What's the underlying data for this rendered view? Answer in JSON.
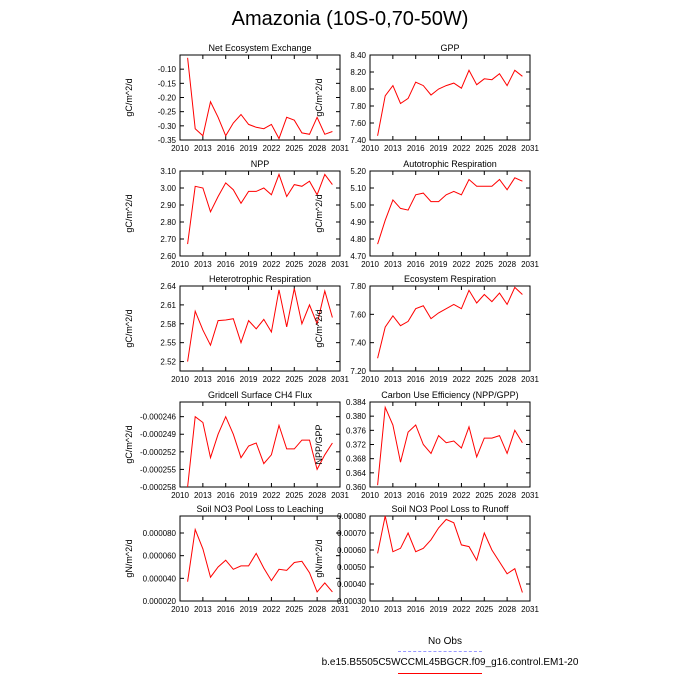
{
  "page": {
    "title": "Amazonia (10S-0,70-50W)"
  },
  "legend": {
    "entries": [
      {
        "label": "No Obs",
        "color": "#9999ff",
        "style": "dashed"
      },
      {
        "label": "b.e15.B5505C5WCCML45BGCR.f09_g16.control.EM1-20",
        "color": "#ff0000",
        "style": "solid"
      }
    ]
  },
  "colors": {
    "series": "#ff0000",
    "axis": "#000000"
  },
  "chart_data": [
    {
      "type": "line",
      "title": "Net Ecosystem Exchange",
      "ylabel": "gC/m^2/d",
      "xlim": [
        2010,
        2031
      ],
      "ylim": [
        -0.35,
        -0.05
      ],
      "xticks": [
        "2010",
        "2013",
        "2016",
        "2019",
        "2022",
        "2025",
        "2028",
        "2031"
      ],
      "yticks": [
        "-0.10",
        "-0.15",
        "-0.20",
        "-0.25",
        "-0.30",
        "-0.35"
      ],
      "ytick_values": [
        -0.1,
        -0.15,
        -0.2,
        -0.25,
        -0.3,
        -0.35
      ],
      "x": [
        2011,
        2012,
        2013,
        2014,
        2015,
        2016,
        2017,
        2018,
        2019,
        2020,
        2021,
        2022,
        2023,
        2024,
        2025,
        2026,
        2027,
        2028,
        2029,
        2030
      ],
      "series": [
        {
          "values": [
            -0.06,
            -0.31,
            -0.335,
            -0.215,
            -0.27,
            -0.335,
            -0.29,
            -0.26,
            -0.295,
            -0.305,
            -0.31,
            -0.295,
            -0.345,
            -0.27,
            -0.28,
            -0.325,
            -0.33,
            -0.27,
            -0.33,
            -0.32
          ]
        }
      ]
    },
    {
      "type": "line",
      "title": "GPP",
      "ylabel": "gC/m^2/d",
      "xlim": [
        2010,
        2031
      ],
      "ylim": [
        7.4,
        8.4
      ],
      "xticks": [
        "2010",
        "2013",
        "2016",
        "2019",
        "2022",
        "2025",
        "2028",
        "2031"
      ],
      "yticks": [
        "8.40",
        "8.20",
        "8.00",
        "7.80",
        "7.60",
        "7.40"
      ],
      "ytick_values": [
        8.4,
        8.2,
        8.0,
        7.8,
        7.6,
        7.4
      ],
      "x": [
        2011,
        2012,
        2013,
        2014,
        2015,
        2016,
        2017,
        2018,
        2019,
        2020,
        2021,
        2022,
        2023,
        2024,
        2025,
        2026,
        2027,
        2028,
        2029,
        2030
      ],
      "series": [
        {
          "values": [
            7.45,
            7.92,
            8.04,
            7.83,
            7.89,
            8.08,
            8.04,
            7.93,
            8.0,
            8.04,
            8.07,
            8.01,
            8.22,
            8.05,
            8.12,
            8.11,
            8.18,
            8.04,
            8.22,
            8.15
          ]
        }
      ]
    },
    {
      "type": "line",
      "title": "NPP",
      "ylabel": "gC/m^2/d",
      "xlim": [
        2010,
        2031
      ],
      "ylim": [
        2.6,
        3.1
      ],
      "xticks": [
        "2010",
        "2013",
        "2016",
        "2019",
        "2022",
        "2025",
        "2028",
        "2031"
      ],
      "yticks": [
        "3.10",
        "3.00",
        "2.90",
        "2.80",
        "2.70",
        "2.60"
      ],
      "ytick_values": [
        3.1,
        3.0,
        2.9,
        2.8,
        2.7,
        2.6
      ],
      "x": [
        2011,
        2012,
        2013,
        2014,
        2015,
        2016,
        2017,
        2018,
        2019,
        2020,
        2021,
        2022,
        2023,
        2024,
        2025,
        2026,
        2027,
        2028,
        2029,
        2030
      ],
      "series": [
        {
          "values": [
            2.67,
            3.01,
            3.0,
            2.86,
            2.95,
            3.03,
            2.99,
            2.91,
            2.98,
            2.98,
            3.0,
            2.96,
            3.08,
            2.95,
            3.02,
            3.01,
            3.04,
            2.96,
            3.08,
            3.02
          ]
        }
      ]
    },
    {
      "type": "line",
      "title": "Autotrophic Respiration",
      "ylabel": "gC/m^2/d",
      "xlim": [
        2010,
        2031
      ],
      "ylim": [
        4.7,
        5.2
      ],
      "xticks": [
        "2010",
        "2013",
        "2016",
        "2019",
        "2022",
        "2025",
        "2028",
        "2031"
      ],
      "yticks": [
        "5.20",
        "5.10",
        "5.00",
        "4.90",
        "4.80",
        "4.70"
      ],
      "ytick_values": [
        5.2,
        5.1,
        5.0,
        4.9,
        4.8,
        4.7
      ],
      "x": [
        2011,
        2012,
        2013,
        2014,
        2015,
        2016,
        2017,
        2018,
        2019,
        2020,
        2021,
        2022,
        2023,
        2024,
        2025,
        2026,
        2027,
        2028,
        2029,
        2030
      ],
      "series": [
        {
          "values": [
            4.77,
            4.91,
            5.03,
            4.98,
            4.97,
            5.06,
            5.07,
            5.02,
            5.02,
            5.06,
            5.08,
            5.06,
            5.15,
            5.11,
            5.11,
            5.11,
            5.15,
            5.09,
            5.16,
            5.14
          ]
        }
      ]
    },
    {
      "type": "line",
      "title": "Heterotrophic Respiration",
      "ylabel": "gC/m^2/d",
      "xlim": [
        2010,
        2031
      ],
      "ylim": [
        2.505,
        2.64
      ],
      "xticks": [
        "2010",
        "2013",
        "2016",
        "2019",
        "2022",
        "2025",
        "2028",
        "2031"
      ],
      "yticks": [
        "2.64",
        "2.61",
        "2.58",
        "2.55",
        "2.52"
      ],
      "ytick_values": [
        2.64,
        2.61,
        2.58,
        2.55,
        2.52
      ],
      "x": [
        2011,
        2012,
        2013,
        2014,
        2015,
        2016,
        2017,
        2018,
        2019,
        2020,
        2021,
        2022,
        2023,
        2024,
        2025,
        2026,
        2027,
        2028,
        2029,
        2030
      ],
      "series": [
        {
          "values": [
            2.52,
            2.6,
            2.57,
            2.546,
            2.585,
            2.586,
            2.588,
            2.55,
            2.585,
            2.572,
            2.587,
            2.567,
            2.634,
            2.575,
            2.636,
            2.58,
            2.61,
            2.58,
            2.632,
            2.59
          ]
        }
      ]
    },
    {
      "type": "line",
      "title": "Ecosystem Respiration",
      "ylabel": "gC/m^2/d",
      "xlim": [
        2010,
        2031
      ],
      "ylim": [
        7.2,
        7.8
      ],
      "xticks": [
        "2010",
        "2013",
        "2016",
        "2019",
        "2022",
        "2025",
        "2028",
        "2031"
      ],
      "yticks": [
        "7.80",
        "7.60",
        "7.40",
        "7.20"
      ],
      "ytick_values": [
        7.8,
        7.6,
        7.4,
        7.2
      ],
      "x": [
        2011,
        2012,
        2013,
        2014,
        2015,
        2016,
        2017,
        2018,
        2019,
        2020,
        2021,
        2022,
        2023,
        2024,
        2025,
        2026,
        2027,
        2028,
        2029,
        2030
      ],
      "series": [
        {
          "values": [
            7.29,
            7.51,
            7.59,
            7.52,
            7.55,
            7.64,
            7.66,
            7.57,
            7.61,
            7.64,
            7.67,
            7.64,
            7.77,
            7.68,
            7.74,
            7.69,
            7.75,
            7.67,
            7.79,
            7.74
          ]
        }
      ]
    },
    {
      "type": "line",
      "title": "Gridcell Surface CH4 Flux",
      "ylabel": "gC/m^2/d",
      "xlim": [
        2010,
        2031
      ],
      "ylim": [
        -0.000258,
        -0.0002435
      ],
      "xticks": [
        "2010",
        "2013",
        "2016",
        "2019",
        "2022",
        "2025",
        "2028",
        "2031"
      ],
      "yticks": [
        "-0.000246",
        "-0.000249",
        "-0.000252",
        "-0.000255",
        "-0.000258"
      ],
      "ytick_values": [
        -0.000246,
        -0.000249,
        -0.000252,
        -0.000255,
        -0.000258
      ],
      "x": [
        2011,
        2012,
        2013,
        2014,
        2015,
        2016,
        2017,
        2018,
        2019,
        2020,
        2021,
        2022,
        2023,
        2024,
        2025,
        2026,
        2027,
        2028,
        2029,
        2030
      ],
      "series": [
        {
          "values": [
            -0.000258,
            -0.000246,
            -0.000247,
            -0.000253,
            -0.000249,
            -0.000246,
            -0.000249,
            -0.000253,
            -0.000251,
            -0.0002505,
            -0.000254,
            -0.0002525,
            -0.0002475,
            -0.0002515,
            -0.0002515,
            -0.00025,
            -0.00025,
            -0.000255,
            -0.0002525,
            -0.0002505
          ]
        }
      ]
    },
    {
      "type": "line",
      "title": "Carbon Use Efficiency (NPP/GPP)",
      "ylabel": "NPP/GPP",
      "xlim": [
        2010,
        2031
      ],
      "ylim": [
        0.36,
        0.384
      ],
      "xticks": [
        "2010",
        "2013",
        "2016",
        "2019",
        "2022",
        "2025",
        "2028",
        "2031"
      ],
      "yticks": [
        "0.384",
        "0.380",
        "0.376",
        "0.372",
        "0.368",
        "0.364",
        "0.360"
      ],
      "ytick_values": [
        0.384,
        0.38,
        0.376,
        0.372,
        0.368,
        0.364,
        0.36
      ],
      "x": [
        2011,
        2012,
        2013,
        2014,
        2015,
        2016,
        2017,
        2018,
        2019,
        2020,
        2021,
        2022,
        2023,
        2024,
        2025,
        2026,
        2027,
        2028,
        2029,
        2030
      ],
      "series": [
        {
          "values": [
            0.3605,
            0.3825,
            0.3775,
            0.367,
            0.3755,
            0.3775,
            0.372,
            0.3695,
            0.3745,
            0.3725,
            0.373,
            0.371,
            0.377,
            0.3685,
            0.3738,
            0.3738,
            0.3745,
            0.3695,
            0.376,
            0.3725
          ]
        }
      ]
    },
    {
      "type": "line",
      "title": "Soil NO3 Pool Loss to Leaching",
      "ylabel": "gN/m^2/d",
      "xlim": [
        2010,
        2031
      ],
      "ylim": [
        2e-05,
        9.5e-05
      ],
      "xticks": [
        "2010",
        "2013",
        "2016",
        "2019",
        "2022",
        "2025",
        "2028",
        "2031"
      ],
      "yticks": [
        "0.000080",
        "0.000060",
        "0.000040",
        "0.000020"
      ],
      "ytick_values": [
        8e-05,
        6e-05,
        4e-05,
        2e-05
      ],
      "x": [
        2011,
        2012,
        2013,
        2014,
        2015,
        2016,
        2017,
        2018,
        2019,
        2020,
        2021,
        2022,
        2023,
        2024,
        2025,
        2026,
        2027,
        2028,
        2029,
        2030
      ],
      "series": [
        {
          "values": [
            3.7e-05,
            8.3e-05,
            6.6e-05,
            4.1e-05,
            5e-05,
            5.6e-05,
            4.8e-05,
            5.1e-05,
            5.1e-05,
            6.2e-05,
            4.9e-05,
            3.8e-05,
            4.8e-05,
            4.7e-05,
            5.4e-05,
            5.5e-05,
            4.5e-05,
            2.8e-05,
            3.6e-05,
            2.8e-05
          ]
        }
      ]
    },
    {
      "type": "line",
      "title": "Soil NO3 Pool Loss to Runoff",
      "ylabel": "gN/m^2/d",
      "xlim": [
        2010,
        2031
      ],
      "ylim": [
        0.0003,
        0.0008
      ],
      "xticks": [
        "2010",
        "2013",
        "2016",
        "2019",
        "2022",
        "2025",
        "2028",
        "2031"
      ],
      "yticks": [
        "0.00080",
        "0.00070",
        "0.00060",
        "0.00050",
        "0.00040",
        "0.00030"
      ],
      "ytick_values": [
        0.0008,
        0.0007,
        0.0006,
        0.0005,
        0.0004,
        0.0003
      ],
      "x": [
        2011,
        2012,
        2013,
        2014,
        2015,
        2016,
        2017,
        2018,
        2019,
        2020,
        2021,
        2022,
        2023,
        2024,
        2025,
        2026,
        2027,
        2028,
        2029,
        2030
      ],
      "series": [
        {
          "values": [
            0.00058,
            0.0008,
            0.00059,
            0.00061,
            0.0007,
            0.00059,
            0.00061,
            0.00066,
            0.00073,
            0.00078,
            0.00076,
            0.00063,
            0.00062,
            0.00054,
            0.0007,
            0.0006,
            0.00053,
            0.00046,
            0.00049,
            0.00035
          ]
        }
      ]
    }
  ]
}
